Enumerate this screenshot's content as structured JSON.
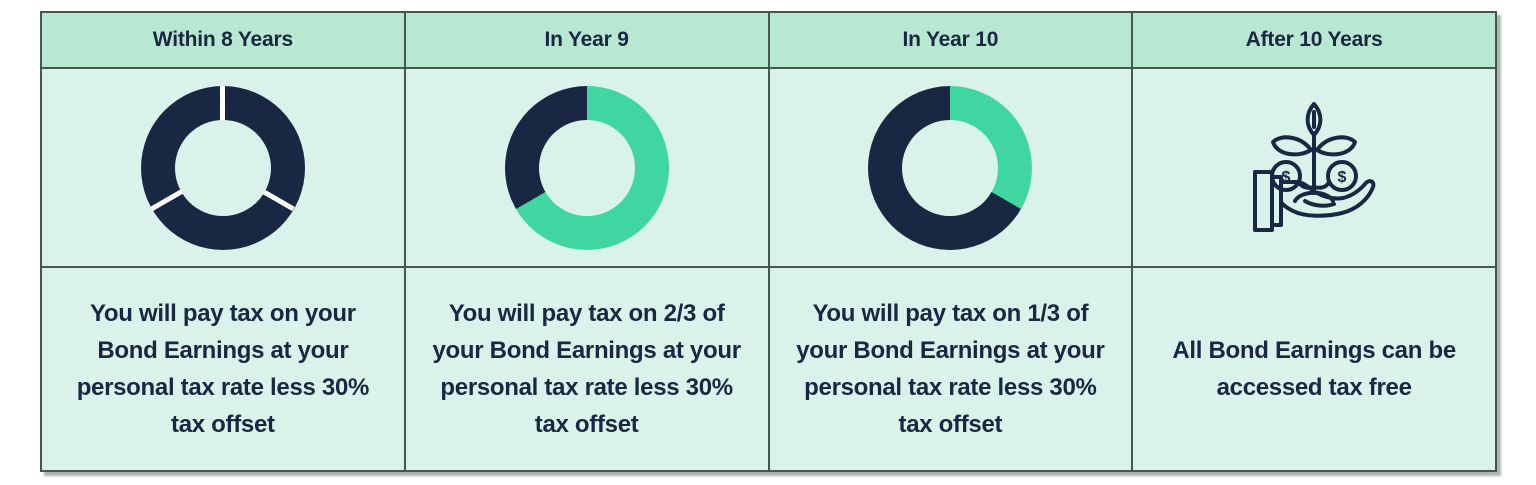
{
  "colors": {
    "page_bg": "#ffffff",
    "header_bg": "#b8e8d1",
    "body_bg": "#d9f3eb",
    "border": "#47564f",
    "navy": "#1a2742",
    "teal": "#3fd6a2",
    "gap_white": "#ffffff"
  },
  "table": {
    "columns": [
      {
        "header": "Within 8 Years",
        "visual": {
          "type": "donut",
          "slices": [
            {
              "color": "navy",
              "start": 0,
              "end": 360
            }
          ],
          "gap_angles": [
            0,
            120,
            240
          ],
          "meaning": "3/3 of bond earnings taxable"
        },
        "description": "You will pay tax on your\nBond Earnings at your\npersonal tax rate less 30%\ntax offset"
      },
      {
        "header": "In Year 9",
        "visual": {
          "type": "donut",
          "slices": [
            {
              "color": "teal",
              "start": 0,
              "end": 240
            },
            {
              "color": "navy",
              "start": 240,
              "end": 360
            }
          ],
          "gap_angles": [],
          "meaning": "2/3 fraction highlighted"
        },
        "description": "You will pay tax on 2/3 of\nyour Bond Earnings at your\npersonal tax rate less 30%\ntax offset"
      },
      {
        "header": "In Year 10",
        "visual": {
          "type": "donut",
          "slices": [
            {
              "color": "teal",
              "start": 0,
              "end": 120
            },
            {
              "color": "navy",
              "start": 120,
              "end": 360
            }
          ],
          "gap_angles": [],
          "meaning": "1/3 fraction highlighted"
        },
        "description": "You will pay tax on 1/3 of\nyour Bond Earnings at your\npersonal tax rate less 30%\ntax offset"
      },
      {
        "header": "After 10 Years",
        "visual": {
          "type": "icon",
          "name": "hand-holding-money-plant",
          "coin_symbol": "$"
        },
        "description": "All Bond Earnings can be\naccessed tax free"
      }
    ]
  }
}
